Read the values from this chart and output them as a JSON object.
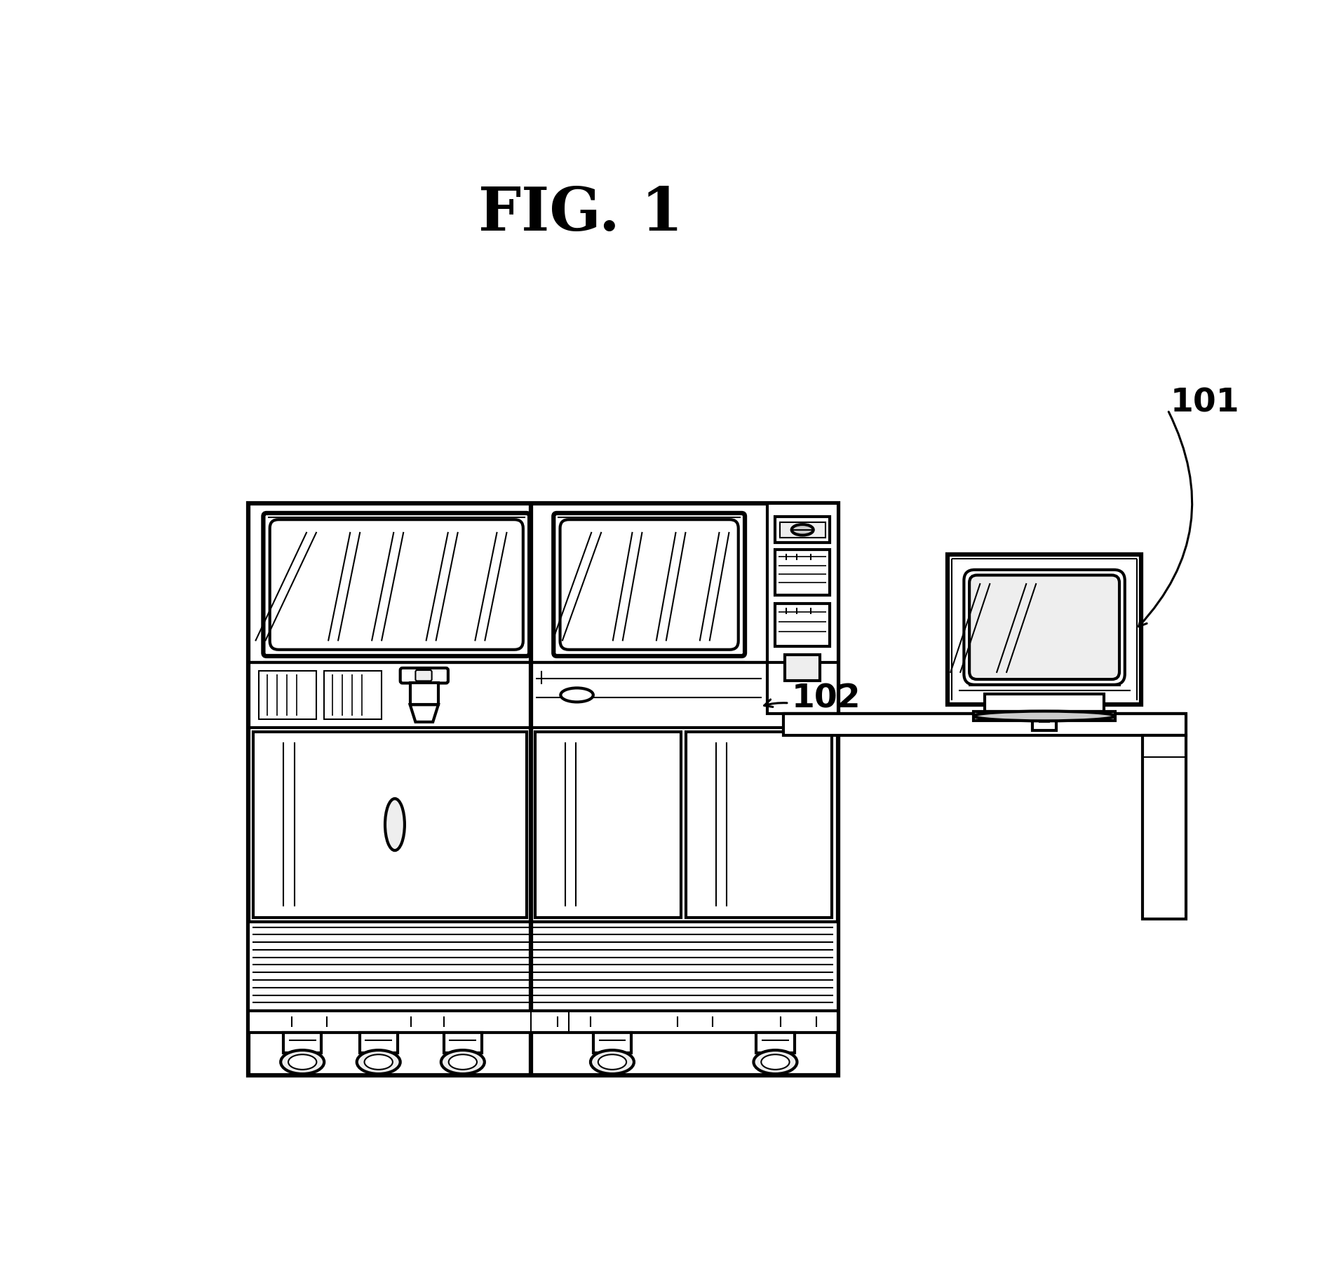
{
  "title": "FIG. 1",
  "title_fontsize": 62,
  "label_101": "101",
  "label_102": "102",
  "bg_color": "#ffffff",
  "lc": "#000000",
  "lw": 2.5,
  "lwt": 1.5,
  "lwk": 4.5,
  "lwm": 3.0,
  "gray_light": "#eeeeee",
  "gray_mid": "#cccccc",
  "gray_dark": "#aaaaaa"
}
